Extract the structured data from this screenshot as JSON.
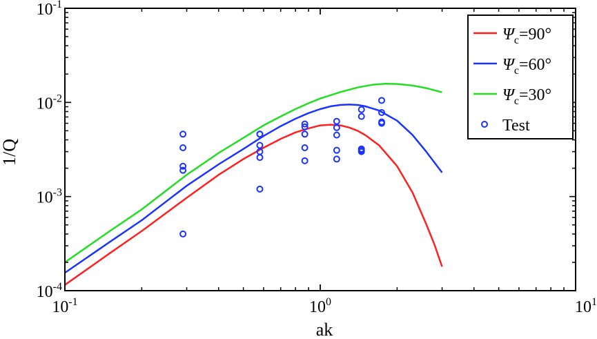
{
  "chart_data": {
    "type": "line",
    "xlabel": "ak",
    "ylabel": "1/Q",
    "xscale": "log",
    "yscale": "log",
    "xlim": [
      0.1,
      10
    ],
    "ylim": [
      0.0001,
      0.1
    ],
    "grid": false,
    "legend_position": "top-right",
    "x_ticks": [
      {
        "value": 0.1,
        "base": "10",
        "exp": "-1"
      },
      {
        "value": 1,
        "base": "10",
        "exp": "0"
      },
      {
        "value": 10,
        "base": "10",
        "exp": "1"
      }
    ],
    "y_ticks": [
      {
        "value": 0.0001,
        "base": "10",
        "exp": "-4"
      },
      {
        "value": 0.001,
        "base": "10",
        "exp": "-3"
      },
      {
        "value": 0.01,
        "base": "10",
        "exp": "-2"
      },
      {
        "value": 0.1,
        "base": "10",
        "exp": "-1"
      }
    ],
    "series": [
      {
        "name": "Ψc=90°",
        "legend_symbol": "Ψ",
        "legend_sub": "c",
        "legend_rest": "=90°",
        "color": "#ff2020",
        "kind": "line",
        "x": [
          0.1,
          0.15,
          0.2,
          0.3,
          0.4,
          0.5,
          0.6,
          0.7,
          0.8,
          0.9,
          1.0,
          1.1,
          1.2,
          1.3,
          1.4,
          1.5,
          1.7,
          2.0,
          2.3,
          2.6,
          2.8,
          3.0
        ],
        "y": [
          0.000115,
          0.00025,
          0.00043,
          0.00097,
          0.0017,
          0.0025,
          0.0033,
          0.0041,
          0.0048,
          0.0053,
          0.0057,
          0.0058,
          0.0057,
          0.0054,
          0.005,
          0.0045,
          0.0035,
          0.0021,
          0.0011,
          0.00051,
          0.00031,
          0.00018
        ]
      },
      {
        "name": "Ψc=60°",
        "legend_symbol": "Ψ",
        "legend_sub": "c",
        "legend_rest": "=60°",
        "color": "#1a33ff",
        "kind": "line",
        "x": [
          0.1,
          0.15,
          0.2,
          0.3,
          0.4,
          0.5,
          0.6,
          0.7,
          0.8,
          0.9,
          1.0,
          1.1,
          1.2,
          1.3,
          1.4,
          1.5,
          1.7,
          2.0,
          2.3,
          2.6,
          3.0
        ],
        "y": [
          0.000155,
          0.00033,
          0.00056,
          0.0013,
          0.0022,
          0.0032,
          0.0044,
          0.0056,
          0.0067,
          0.0077,
          0.0085,
          0.0091,
          0.0094,
          0.0095,
          0.0094,
          0.0091,
          0.0082,
          0.0064,
          0.0045,
          0.003,
          0.0018
        ]
      },
      {
        "name": "Ψc=30°",
        "legend_symbol": "Ψ",
        "legend_sub": "c",
        "legend_rest": "=30°",
        "color": "#22dd22",
        "kind": "line",
        "x": [
          0.1,
          0.15,
          0.2,
          0.3,
          0.4,
          0.5,
          0.6,
          0.7,
          0.8,
          0.9,
          1.0,
          1.2,
          1.4,
          1.6,
          1.8,
          2.0,
          2.3,
          2.6,
          3.0
        ],
        "y": [
          0.0002,
          0.00043,
          0.00073,
          0.0017,
          0.0029,
          0.0042,
          0.0057,
          0.0071,
          0.0085,
          0.0098,
          0.011,
          0.0129,
          0.0144,
          0.0154,
          0.0158,
          0.0157,
          0.0151,
          0.0142,
          0.0128
        ]
      },
      {
        "name": "Test",
        "legend_symbol": "",
        "legend_sub": "",
        "legend_rest": "Test",
        "color": "#1a33ff",
        "kind": "scatter",
        "x": [
          0.29,
          0.29,
          0.29,
          0.29,
          0.29,
          0.58,
          0.58,
          0.58,
          0.58,
          0.58,
          0.58,
          0.87,
          0.87,
          0.87,
          0.87,
          0.87,
          1.16,
          1.16,
          1.16,
          1.16,
          1.16,
          1.45,
          1.45,
          1.45,
          1.45,
          1.45,
          1.74,
          1.74,
          1.74,
          1.74
        ],
        "y": [
          0.0046,
          0.0033,
          0.0021,
          0.0019,
          0.0004,
          0.0046,
          0.0035,
          0.003,
          0.0026,
          0.0012,
          0.0046,
          0.0059,
          0.0055,
          0.0033,
          0.0024,
          0.0046,
          0.0063,
          0.0054,
          0.0045,
          0.0031,
          0.0025,
          0.0084,
          0.0071,
          0.0032,
          0.0031,
          0.003,
          0.0105,
          0.0078,
          0.0062,
          0.006
        ]
      }
    ]
  }
}
